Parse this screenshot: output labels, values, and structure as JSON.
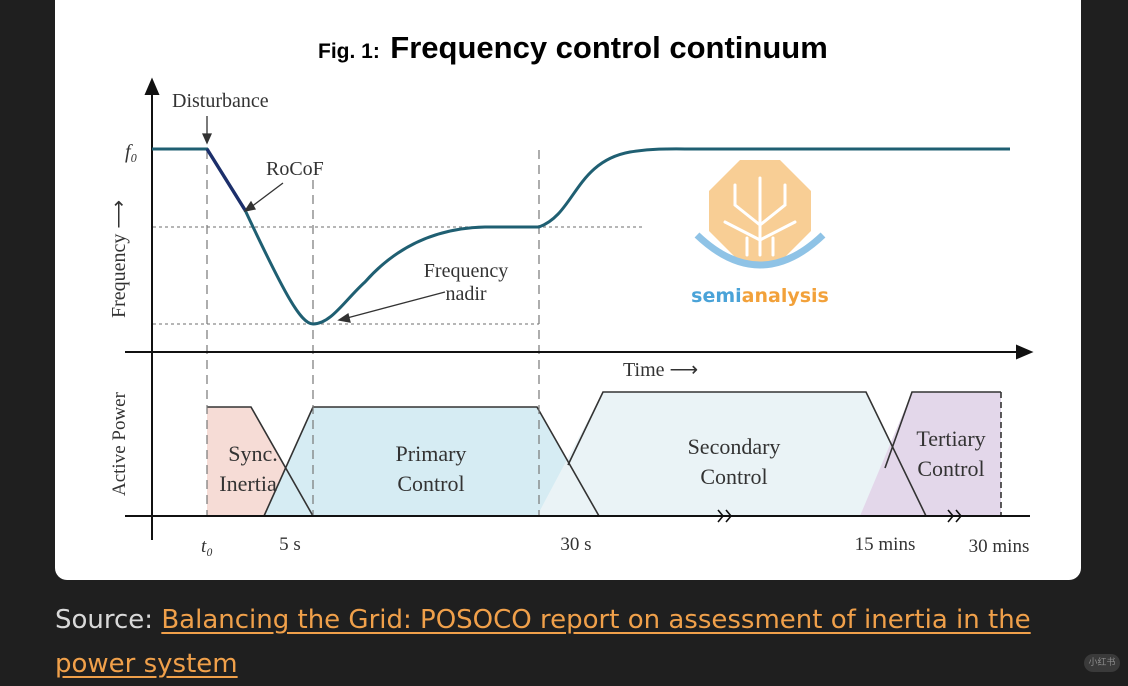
{
  "figure": {
    "title_prefix": "Fig. 1:",
    "title_main": "Frequency control continuum",
    "y_upper_label": "Frequency ⟶",
    "y_lower_label": "Active Power",
    "f0_label": "f₀",
    "disturbance_label": "Disturbance",
    "rocof_label": "RoCoF",
    "nadir_label_line1": "Frequency",
    "nadir_label_line2": "nadir",
    "time_label": "Time ⟶",
    "phases": [
      {
        "line1": "Sync.",
        "line2": "Inertia",
        "color": "#f6dcd6"
      },
      {
        "line1": "Primary",
        "line2": "Control",
        "color": "#d6ecf3"
      },
      {
        "line1": "Secondary",
        "line2": "Control",
        "color": "#eaf3f6"
      },
      {
        "line1": "Tertiary",
        "line2": "Control",
        "color": "#e3d7ea"
      }
    ],
    "x_ticks": [
      "t₀",
      "5 s",
      "30 s",
      "15 mins",
      "30 mins"
    ],
    "curve_color": "#1f5f72",
    "rocof_color": "#1c2f6b"
  },
  "watermark": {
    "brand_prefix": "semi",
    "brand_suffix": "analysis",
    "prefix_color": "#4aa3d8",
    "suffix_color": "#f2a13a"
  },
  "caption": {
    "prefix": "Source: ",
    "link_text": "Balancing the Grid: POSOCO report on assessment of inertia in the power system"
  },
  "corner_badge": "小红书"
}
